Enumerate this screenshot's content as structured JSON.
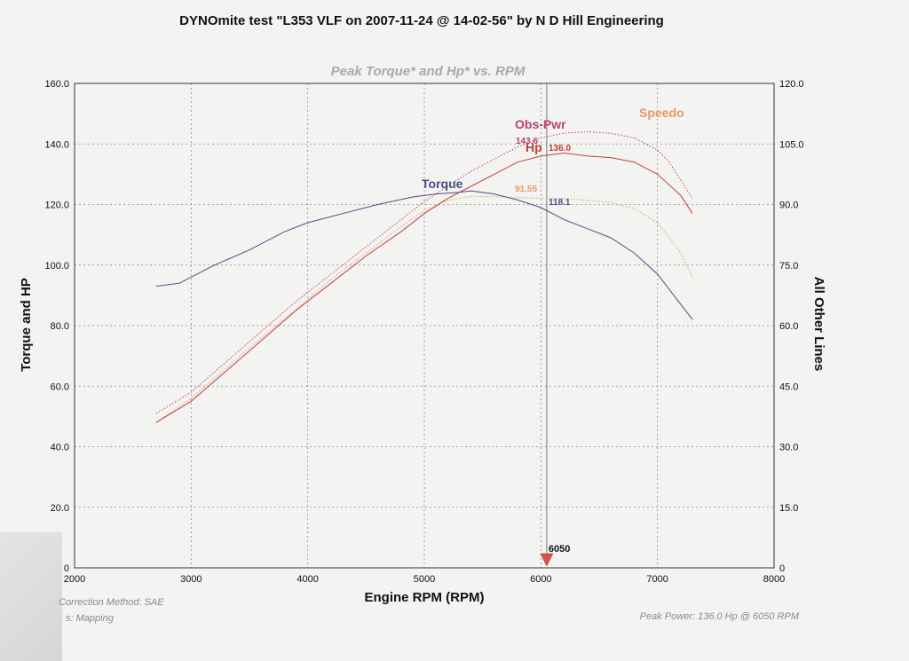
{
  "chart_data": {
    "type": "line",
    "title": "DYNOmite test \"L353 VLF on 2007-11-24 @ 14-02-56\" by N D Hill Engineering",
    "subtitle": "Peak Torque* and Hp* vs. RPM",
    "xlabel": "Engine RPM (RPM)",
    "ylabel": "Torque and HP",
    "y2label": "All Other Lines",
    "xlim": [
      2000,
      8000
    ],
    "ylim": [
      0,
      160
    ],
    "y2lim": [
      0,
      120
    ],
    "grid": true,
    "x_ticks": [
      "2000",
      "3000",
      "4000",
      "5000",
      "6000",
      "7000",
      "8000"
    ],
    "y_ticks": [
      "0",
      "20.0",
      "40.0",
      "60.0",
      "80.0",
      "100.0",
      "120.0",
      "140.0",
      "160.0"
    ],
    "y2_ticks": [
      "0",
      "15.0",
      "30.0",
      "45.0",
      "60.0",
      "75.0",
      "90.0",
      "105.0",
      "120.0"
    ],
    "cursor": {
      "rpm": 6050,
      "label": "6050"
    },
    "series": [
      {
        "name": "Torque",
        "axis": "left",
        "color": "#4a4e86",
        "x": [
          2700,
          2900,
          3200,
          3500,
          3800,
          4000,
          4300,
          4600,
          4900,
          5100,
          5300,
          5400,
          5600,
          5800,
          6000,
          6200,
          6400,
          6600,
          6800,
          7000,
          7200,
          7300
        ],
        "values": [
          93,
          94,
          100,
          105,
          111,
          114,
          117,
          120,
          122.5,
          123.5,
          124,
          124.5,
          123.5,
          121.5,
          119,
          115,
          112,
          109,
          104,
          97,
          87,
          82
        ],
        "label": "Torque",
        "value_label": "118.1"
      },
      {
        "name": "Hp",
        "axis": "left",
        "color": "#c0403a",
        "x": [
          2700,
          3000,
          3300,
          3600,
          3900,
          4200,
          4500,
          4800,
          5000,
          5200,
          5400,
          5600,
          5800,
          6000,
          6200,
          6400,
          6600,
          6800,
          7000,
          7200,
          7300
        ],
        "values": [
          48,
          55,
          65,
          75,
          85,
          94,
          103,
          111,
          117,
          122,
          126,
          130,
          134,
          136,
          137,
          136,
          135.5,
          134,
          130,
          123,
          117
        ],
        "label": "Hp",
        "value_label": "136.0"
      },
      {
        "name": "Obs-Pwr",
        "axis": "left",
        "color": "#c0406a",
        "x": [
          2700,
          3000,
          3300,
          3600,
          3900,
          4200,
          4500,
          4800,
          5000,
          5200,
          5400,
          5600,
          5800,
          6000,
          6200,
          6400,
          6600,
          6800,
          7000,
          7100,
          7200,
          7300
        ],
        "values": [
          51,
          58,
          68,
          78,
          88,
          97,
          106,
          115,
          121,
          126,
          131,
          135,
          139,
          142,
          143.6,
          144,
          143.5,
          142,
          138,
          134,
          128,
          122
        ],
        "label": "Obs-Pwr",
        "value_label": "143.6"
      },
      {
        "name": "Speedo",
        "axis": "right",
        "color": "#e39a68",
        "x": [
          2700,
          3000,
          3300,
          3600,
          3900,
          4200,
          4500,
          4800,
          5000,
          5200,
          5400,
          5600,
          5800,
          6000,
          6200,
          6400,
          6600,
          6800,
          7000,
          7200,
          7300
        ],
        "values": [
          36,
          42,
          49.5,
          57,
          64,
          71.5,
          78,
          84.5,
          88.5,
          91,
          92,
          92,
          91.7,
          91.55,
          91.5,
          91,
          90.5,
          89,
          85.5,
          78,
          72
        ],
        "label": "Speedo",
        "value_label": "91.55"
      }
    ],
    "footer": {
      "correction": "Correction Method: SAE",
      "mapping": "s: Mapping",
      "peak": "Peak Power: 136.0 Hp @ 6050 RPM"
    }
  }
}
